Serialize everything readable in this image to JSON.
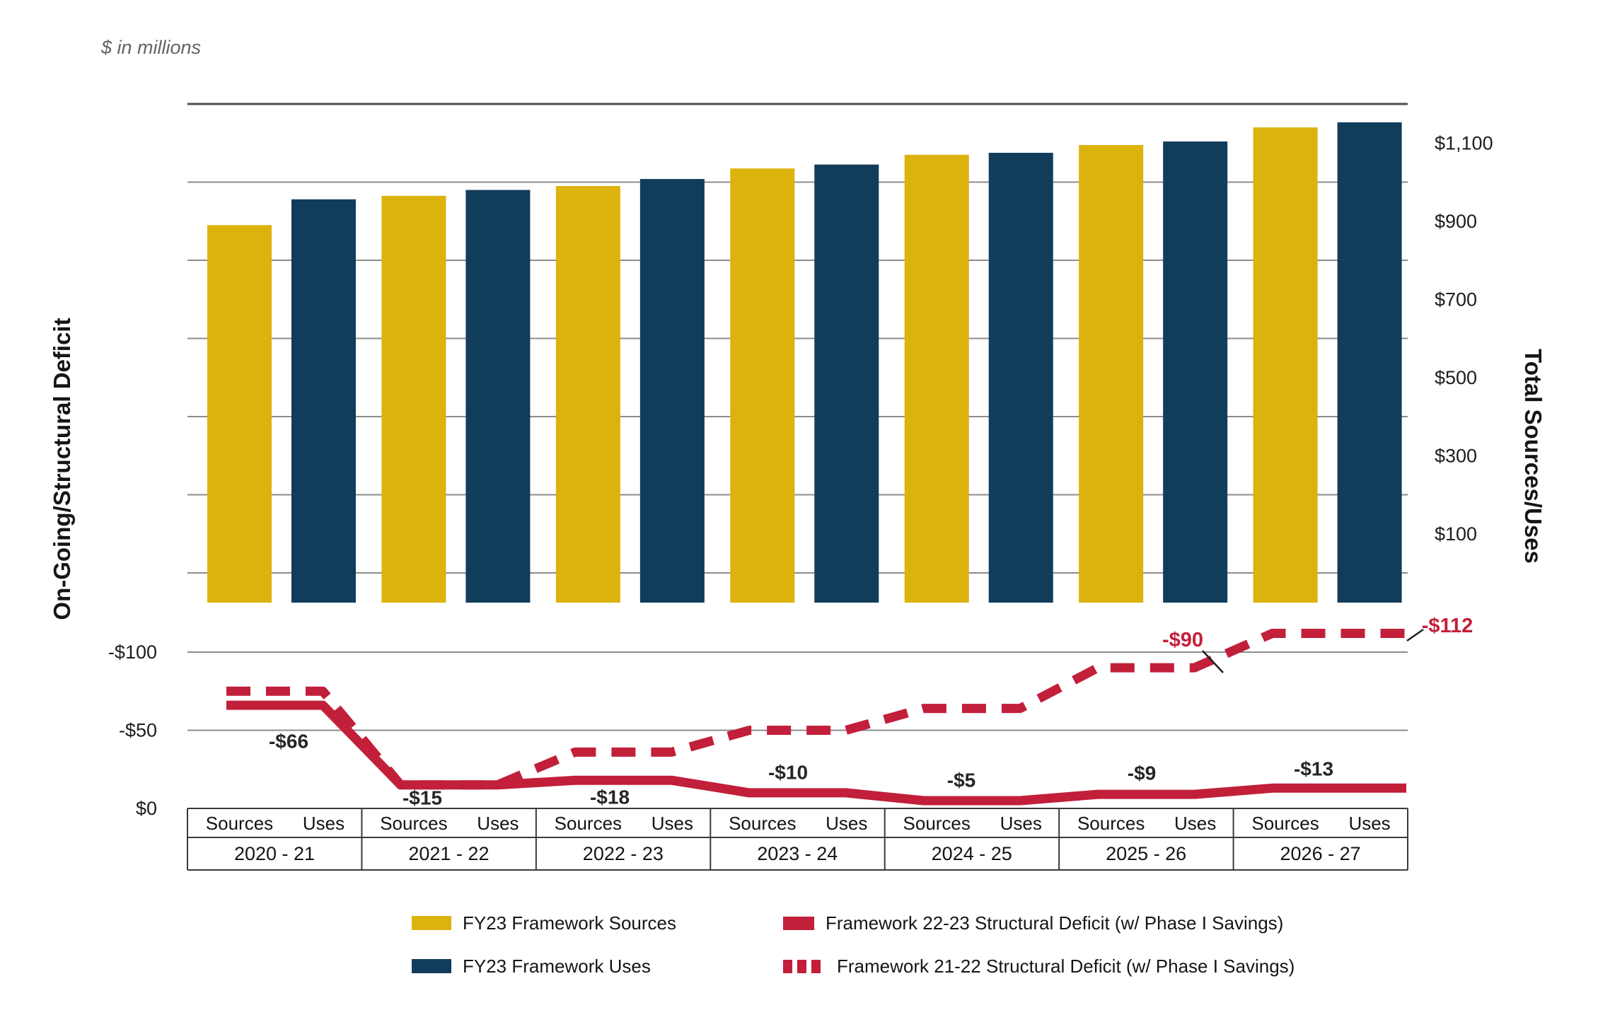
{
  "units_note": "$ in millions",
  "axes": {
    "left": {
      "title": "On-Going/Structural Deficit",
      "ticks": [
        {
          "label": "-$100",
          "value": -100
        },
        {
          "label": "-$50",
          "value": -50
        },
        {
          "label": "$0",
          "value": 0
        }
      ]
    },
    "right": {
      "title": "Total Sources/Uses",
      "ticks": [
        {
          "label": "$1,100",
          "value": 1100
        },
        {
          "label": "$900",
          "value": 900
        },
        {
          "label": "$700",
          "value": 700
        },
        {
          "label": "$500",
          "value": 500
        },
        {
          "label": "$300",
          "value": 300
        },
        {
          "label": "$100",
          "value": 100
        }
      ]
    }
  },
  "x_axis": {
    "sub_labels": [
      "Sources",
      "Uses"
    ],
    "years": [
      "2020 - 21",
      "2021 - 22",
      "2022 - 23",
      "2023 - 24",
      "2024 - 25",
      "2025 - 26",
      "2026 - 27"
    ]
  },
  "chart_data": {
    "type": "combo-bar-line",
    "categories": [
      "2020 - 21",
      "2021 - 22",
      "2022 - 23",
      "2023 - 24",
      "2024 - 25",
      "2025 - 26",
      "2026 - 27"
    ],
    "bar_axis": {
      "range": [
        0,
        1200
      ],
      "gridline_step": 200,
      "units": "$ millions"
    },
    "deficit_axis": {
      "range": [
        0,
        -120
      ],
      "gridline_step": -50,
      "inverted": true
    },
    "series": [
      {
        "name": "FY23 Framework Sources",
        "type": "bar",
        "color": "#DCB20D",
        "values": [
          890,
          965,
          990,
          1035,
          1070,
          1095,
          1140
        ]
      },
      {
        "name": "FY23 Framework Uses",
        "type": "bar",
        "color": "#113C5C",
        "values": [
          956,
          980,
          1008,
          1045,
          1075,
          1104,
          1153
        ]
      },
      {
        "name": "Framework 22-23 Structural Deficit (w/ Phase I Savings)",
        "type": "line",
        "style": "solid",
        "color": "#C21F3A",
        "values": [
          -66,
          -15,
          -18,
          -10,
          -5,
          -9,
          -13
        ],
        "point_labels": [
          "-$66",
          "-$15",
          "-$18",
          "-$10",
          "-$5",
          "-$9",
          "-$13"
        ],
        "label_color": "#262626"
      },
      {
        "name": "Framework 21-22 Structural Deficit (w/ Phase I Savings)",
        "type": "line",
        "style": "dashed",
        "color": "#C21F3A",
        "values": [
          -75,
          -15,
          -36,
          -50,
          -64,
          -90,
          -112
        ],
        "point_labels": [
          null,
          null,
          null,
          null,
          null,
          "-$90",
          "-$112"
        ],
        "label_color": "#C21F3A"
      }
    ]
  },
  "legend": {
    "items": [
      {
        "label": "FY23 Framework Sources",
        "swatch": "bar-gold"
      },
      {
        "label": "FY23 Framework Uses",
        "swatch": "bar-navy"
      },
      {
        "label": "Framework 22-23 Structural Deficit (w/ Phase I Savings)",
        "swatch": "line-solid-red"
      },
      {
        "label": "Framework 21-22 Structural Deficit (w/ Phase I Savings)",
        "swatch": "line-dashed-red"
      }
    ]
  },
  "colors": {
    "sources": "#DCB20D",
    "uses": "#113C5C",
    "deficit": "#C21F3A",
    "gridline": "#8C8C8C",
    "axis_line": "#4D4D4D",
    "table_border": "#3A3A3A",
    "callout": "#1F1F1F",
    "label_dark": "#262626",
    "note_gray": "#63636A"
  }
}
